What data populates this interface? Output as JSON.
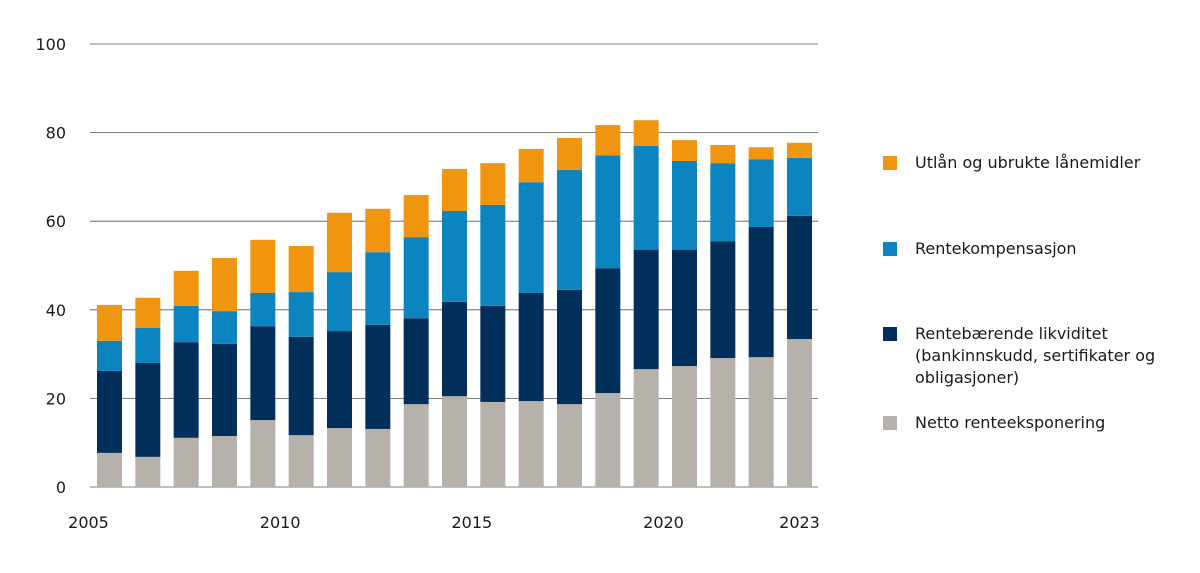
{
  "chart_data": {
    "type": "bar",
    "stacked": true,
    "categories": [
      "2005",
      "2006",
      "2007",
      "2008",
      "2009",
      "2010",
      "2011",
      "2012",
      "2013",
      "2014",
      "2015",
      "2016",
      "2017",
      "2018",
      "2019",
      "2020",
      "2021",
      "2022",
      "2023"
    ],
    "x_tick_labels": [
      "2005",
      "2010",
      "2015",
      "2020",
      "2023"
    ],
    "y_ticks": [
      0,
      20,
      40,
      60,
      80,
      100
    ],
    "ylim": [
      0,
      100
    ],
    "grid": true,
    "legend_position": "right",
    "series": [
      {
        "name": "Netto renteeksponering",
        "color": "#b7b1ab",
        "values": [
          7.7,
          6.8,
          11.1,
          11.5,
          15.1,
          11.7,
          13.3,
          13.1,
          18.7,
          20.5,
          19.2,
          19.4,
          18.7,
          21.2,
          26.6,
          27.3,
          29.1,
          29.3,
          33.4
        ]
      },
      {
        "name": "Rentebærende likviditet (bankinnskudd, sertifikater og obligasjoner)",
        "color": "#03305a",
        "values": [
          18.5,
          21.2,
          21.6,
          20.8,
          21.2,
          22.2,
          21.9,
          23.5,
          19.4,
          21.3,
          21.7,
          24.4,
          25.8,
          28.2,
          26.9,
          26.2,
          26.4,
          29.4,
          27.8
        ]
      },
      {
        "name": "Rentekompensasjon",
        "color": "#0b84c0",
        "values": [
          6.8,
          7.9,
          8.2,
          7.4,
          7.5,
          10.1,
          13.3,
          16.4,
          18.3,
          20.5,
          22.8,
          25.0,
          27.1,
          25.5,
          23.5,
          20.1,
          17.6,
          15.3,
          13.1
        ]
      },
      {
        "name": "Utlån og ubrukte lånemidler",
        "color": "#f0950f",
        "values": [
          8.1,
          6.8,
          7.9,
          12.0,
          12.0,
          10.4,
          13.4,
          9.8,
          9.5,
          9.5,
          9.4,
          7.5,
          7.2,
          6.8,
          5.8,
          4.7,
          4.1,
          2.7,
          3.4
        ]
      }
    ]
  },
  "legend": [
    {
      "label": "Utlån og ubrukte lånemidler",
      "color": "#f0950f"
    },
    {
      "label": "Rentekompensasjon",
      "color": "#0b84c0"
    },
    {
      "label": "Rentebærende likviditet (bankinnskudd, sertifikater og obligasjoner)",
      "color": "#03305a"
    },
    {
      "label": "Netto renteeksponering",
      "color": "#b7b1ab"
    }
  ]
}
